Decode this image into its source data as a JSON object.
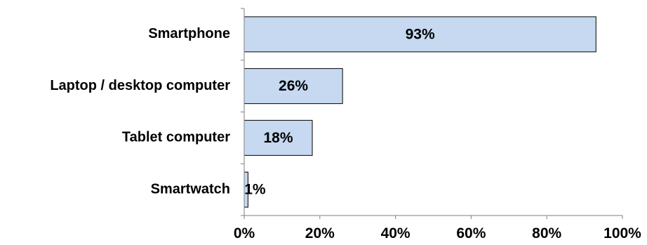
{
  "chart_data": {
    "type": "bar",
    "orientation": "horizontal",
    "categories": [
      "Smartphone",
      "Laptop  / desktop computer",
      "Tablet computer",
      "Smartwatch"
    ],
    "values": [
      93,
      26,
      18,
      1
    ],
    "data_labels": [
      "93%",
      "26%",
      "18%",
      "1%"
    ],
    "title": "",
    "xlabel": "",
    "ylabel": "",
    "xlim": [
      0,
      100
    ],
    "x_ticks": [
      0,
      20,
      40,
      60,
      80,
      100
    ],
    "x_tick_labels": [
      "0%",
      "20%",
      "40%",
      "60%",
      "80%",
      "100%"
    ],
    "grid": false,
    "legend": "none",
    "colors": {
      "bar_fill": "#c6d9f1",
      "bar_stroke": "#000000",
      "axis": "#7f7f7f"
    }
  }
}
